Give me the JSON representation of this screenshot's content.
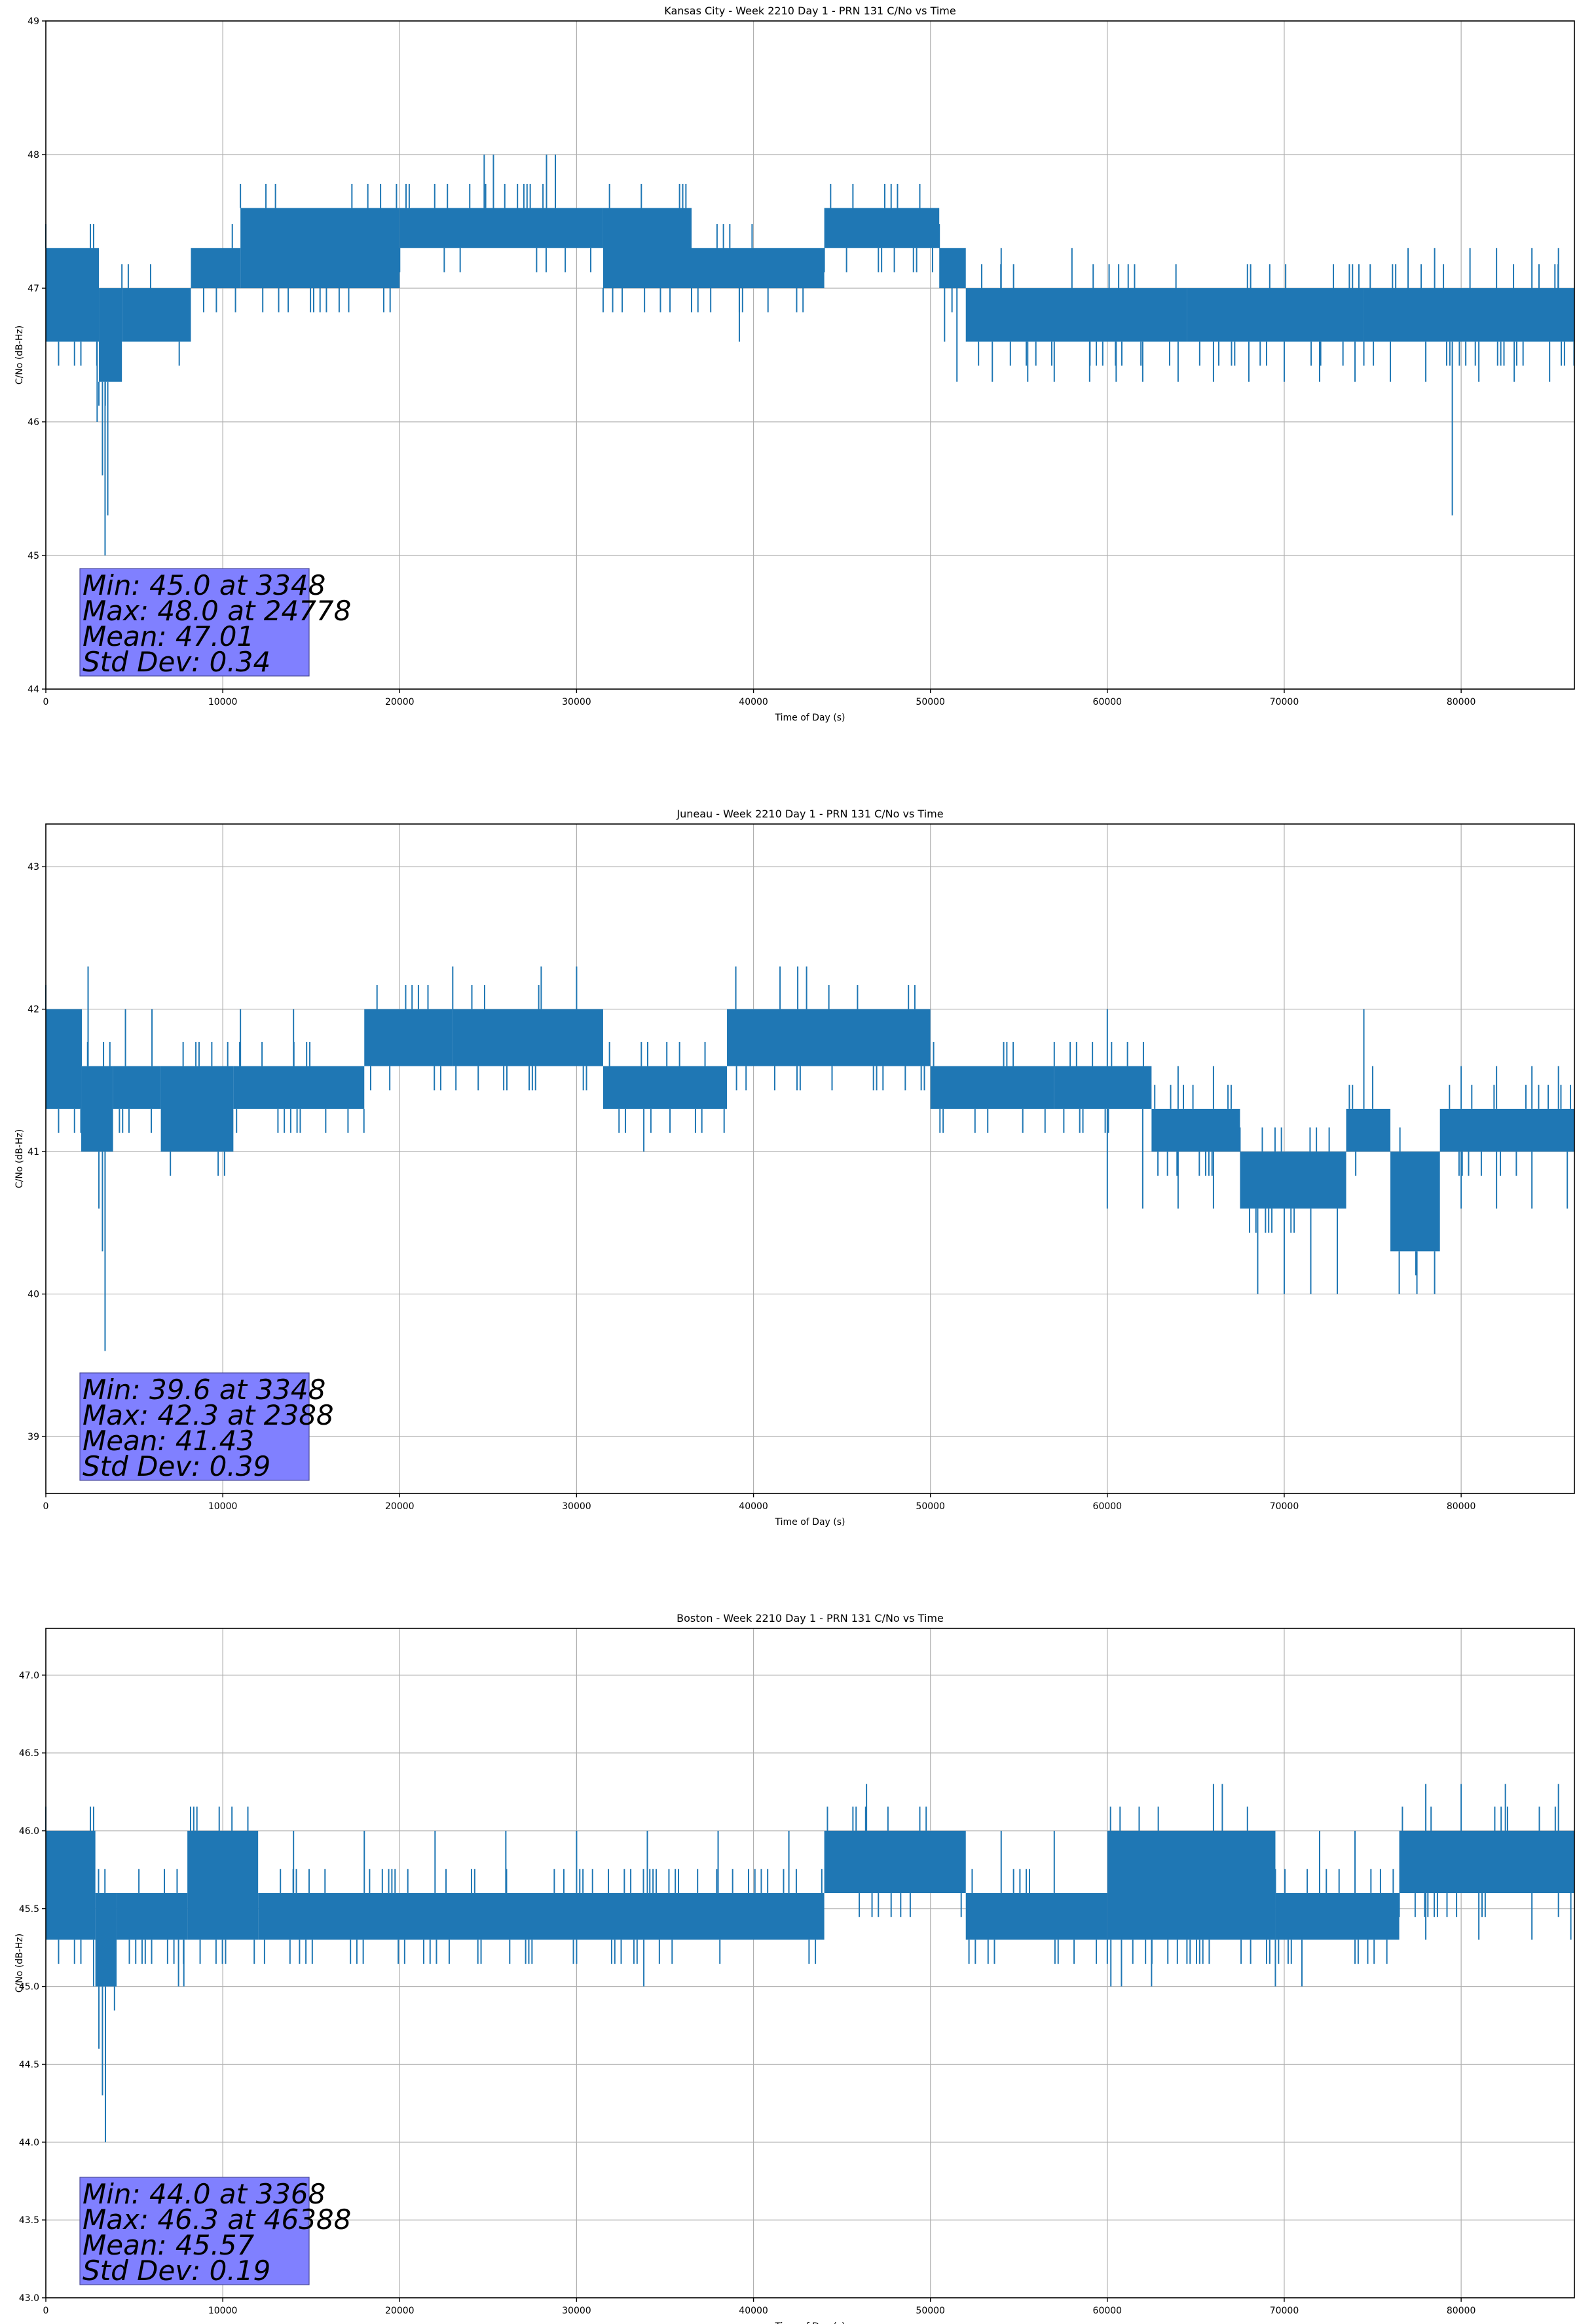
{
  "chart_data": [
    {
      "type": "line",
      "title": "Kansas City - Week 2210 Day 1 - PRN 131 C/No vs Time",
      "xlabel": "Time of Day (s)",
      "ylabel": "C/No (dB-Hz)",
      "xlim": [
        0,
        86400
      ],
      "ylim": [
        44,
        49
      ],
      "x_ticks": [
        0,
        10000,
        20000,
        30000,
        40000,
        50000,
        60000,
        70000,
        80000
      ],
      "x_tick_labels": [
        "0",
        "10000",
        "20000",
        "30000",
        "40000",
        "50000",
        "60000",
        "70000",
        "80000"
      ],
      "y_ticks": [
        44,
        45,
        46,
        47,
        48,
        49
      ],
      "y_tick_labels": [
        "44",
        "45",
        "46",
        "47",
        "48",
        "49"
      ],
      "grid": true,
      "color": "#1f77b4",
      "stats_box_color": "#8080ff",
      "stats": [
        "Min: 45.0 at 3348",
        "Max: 48.0 at 24778",
        "Mean: 47.01",
        "Std Dev: 0.34"
      ],
      "series": [
        {
          "segments": [
            {
              "x0": 0,
              "x1": 3000,
              "lo": 46.6,
              "hi": 47.3
            },
            {
              "x0": 3000,
              "x1": 4300,
              "lo": 46.3,
              "hi": 47.0
            },
            {
              "x0": 4300,
              "x1": 8200,
              "lo": 46.6,
              "hi": 47.0
            },
            {
              "x0": 8200,
              "x1": 11000,
              "lo": 47.0,
              "hi": 47.3
            },
            {
              "x0": 11000,
              "x1": 20000,
              "lo": 47.0,
              "hi": 47.6
            },
            {
              "x0": 20000,
              "x1": 31500,
              "lo": 47.3,
              "hi": 47.6
            },
            {
              "x0": 31500,
              "x1": 36500,
              "lo": 47.0,
              "hi": 47.6
            },
            {
              "x0": 36500,
              "x1": 44000,
              "lo": 47.0,
              "hi": 47.3
            },
            {
              "x0": 44000,
              "x1": 50500,
              "lo": 47.3,
              "hi": 47.6
            },
            {
              "x0": 50500,
              "x1": 52000,
              "lo": 47.0,
              "hi": 47.3
            },
            {
              "x0": 52000,
              "x1": 64500,
              "lo": 46.6,
              "hi": 47.0
            },
            {
              "x0": 64500,
              "x1": 74500,
              "lo": 46.6,
              "hi": 47.0
            },
            {
              "x0": 74500,
              "x1": 86400,
              "lo": 46.6,
              "hi": 47.0
            }
          ],
          "spikes_up": [
            {
              "x": 400,
              "y": 47.3
            },
            {
              "x": 1000,
              "y": 47.3
            },
            {
              "x": 1500,
              "y": 47.3
            },
            {
              "x": 1900,
              "y": 47.3
            },
            {
              "x": 24778,
              "y": 48.0
            },
            {
              "x": 25300,
              "y": 48.0
            },
            {
              "x": 28300,
              "y": 48.0
            },
            {
              "x": 28800,
              "y": 48.0
            },
            {
              "x": 12000,
              "y": 47.6
            },
            {
              "x": 13000,
              "y": 47.6
            },
            {
              "x": 14500,
              "y": 47.6
            },
            {
              "x": 16000,
              "y": 47.6
            },
            {
              "x": 18000,
              "y": 47.6
            },
            {
              "x": 77000,
              "y": 47.3
            },
            {
              "x": 78500,
              "y": 47.3
            },
            {
              "x": 80500,
              "y": 47.3
            },
            {
              "x": 82000,
              "y": 47.3
            },
            {
              "x": 84000,
              "y": 47.3
            },
            {
              "x": 85500,
              "y": 47.3
            },
            {
              "x": 54000,
              "y": 47.3
            },
            {
              "x": 58000,
              "y": 47.3
            }
          ],
          "spikes_down": [
            {
              "x": 3348,
              "y": 45.0
            },
            {
              "x": 3200,
              "y": 45.6
            },
            {
              "x": 3500,
              "y": 45.3
            },
            {
              "x": 2900,
              "y": 46.0
            },
            {
              "x": 39200,
              "y": 46.6
            },
            {
              "x": 79500,
              "y": 45.3
            },
            {
              "x": 50800,
              "y": 46.6
            },
            {
              "x": 51500,
              "y": 46.3
            },
            {
              "x": 53500,
              "y": 46.3
            },
            {
              "x": 55500,
              "y": 46.3
            },
            {
              "x": 57000,
              "y": 46.3
            },
            {
              "x": 59000,
              "y": 46.3
            },
            {
              "x": 60500,
              "y": 46.3
            },
            {
              "x": 62000,
              "y": 46.3
            },
            {
              "x": 64000,
              "y": 46.3
            },
            {
              "x": 66000,
              "y": 46.3
            },
            {
              "x": 68000,
              "y": 46.3
            },
            {
              "x": 70000,
              "y": 46.3
            },
            {
              "x": 72000,
              "y": 46.3
            },
            {
              "x": 74000,
              "y": 46.3
            },
            {
              "x": 76000,
              "y": 46.3
            },
            {
              "x": 78000,
              "y": 46.3
            },
            {
              "x": 81000,
              "y": 46.3
            },
            {
              "x": 83000,
              "y": 46.3
            },
            {
              "x": 85000,
              "y": 46.3
            }
          ]
        }
      ]
    },
    {
      "type": "line",
      "title": "Juneau - Week 2210 Day 1 - PRN 131 C/No vs Time",
      "xlabel": "Time of Day (s)",
      "ylabel": "C/No (dB-Hz)",
      "xlim": [
        0,
        86400
      ],
      "ylim": [
        38.6,
        43.3
      ],
      "x_ticks": [
        0,
        10000,
        20000,
        30000,
        40000,
        50000,
        60000,
        70000,
        80000
      ],
      "x_tick_labels": [
        "0",
        "10000",
        "20000",
        "30000",
        "40000",
        "50000",
        "60000",
        "70000",
        "80000"
      ],
      "y_ticks": [
        39,
        40,
        41,
        42,
        43
      ],
      "y_tick_labels": [
        "39",
        "40",
        "41",
        "42",
        "43"
      ],
      "grid": true,
      "color": "#1f77b4",
      "stats_box_color": "#8080ff",
      "stats": [
        "Min: 39.6 at 3348",
        "Max: 42.3 at 2388",
        "Mean: 41.43",
        "Std Dev: 0.39"
      ],
      "series": [
        {
          "segments": [
            {
              "x0": 0,
              "x1": 2000,
              "lo": 41.3,
              "hi": 42.0
            },
            {
              "x0": 2000,
              "x1": 3800,
              "lo": 41.0,
              "hi": 41.6
            },
            {
              "x0": 3800,
              "x1": 6500,
              "lo": 41.3,
              "hi": 41.6
            },
            {
              "x0": 6500,
              "x1": 10600,
              "lo": 41.0,
              "hi": 41.6
            },
            {
              "x0": 10600,
              "x1": 18000,
              "lo": 41.3,
              "hi": 41.6
            },
            {
              "x0": 18000,
              "x1": 23000,
              "lo": 41.6,
              "hi": 42.0
            },
            {
              "x0": 23000,
              "x1": 31500,
              "lo": 41.6,
              "hi": 42.0
            },
            {
              "x0": 31500,
              "x1": 38500,
              "lo": 41.3,
              "hi": 41.6
            },
            {
              "x0": 38500,
              "x1": 50000,
              "lo": 41.6,
              "hi": 42.0
            },
            {
              "x0": 50000,
              "x1": 57000,
              "lo": 41.3,
              "hi": 41.6
            },
            {
              "x0": 57000,
              "x1": 62500,
              "lo": 41.3,
              "hi": 41.6
            },
            {
              "x0": 62500,
              "x1": 67500,
              "lo": 41.0,
              "hi": 41.3
            },
            {
              "x0": 67500,
              "x1": 73500,
              "lo": 40.6,
              "hi": 41.0
            },
            {
              "x0": 73500,
              "x1": 76000,
              "lo": 41.0,
              "hi": 41.3
            },
            {
              "x0": 76000,
              "x1": 78800,
              "lo": 40.3,
              "hi": 41.0
            },
            {
              "x0": 78800,
              "x1": 86400,
              "lo": 41.0,
              "hi": 41.3
            }
          ],
          "spikes_up": [
            {
              "x": 2388,
              "y": 42.3
            },
            {
              "x": 23000,
              "y": 42.3
            },
            {
              "x": 28000,
              "y": 42.3
            },
            {
              "x": 30000,
              "y": 42.3
            },
            {
              "x": 39000,
              "y": 42.3
            },
            {
              "x": 41500,
              "y": 42.3
            },
            {
              "x": 42500,
              "y": 42.3
            },
            {
              "x": 43000,
              "y": 42.3
            },
            {
              "x": 2000,
              "y": 42.0
            },
            {
              "x": 4500,
              "y": 42.0
            },
            {
              "x": 6000,
              "y": 42.0
            },
            {
              "x": 11000,
              "y": 42.0
            },
            {
              "x": 14000,
              "y": 42.0
            },
            {
              "x": 60000,
              "y": 42.0
            },
            {
              "x": 74500,
              "y": 42.0
            },
            {
              "x": 64000,
              "y": 41.6
            },
            {
              "x": 66000,
              "y": 41.6
            },
            {
              "x": 75000,
              "y": 41.6
            },
            {
              "x": 80000,
              "y": 41.6
            },
            {
              "x": 82000,
              "y": 41.6
            },
            {
              "x": 84000,
              "y": 41.6
            },
            {
              "x": 85500,
              "y": 41.6
            }
          ],
          "spikes_down": [
            {
              "x": 3348,
              "y": 39.6
            },
            {
              "x": 3200,
              "y": 40.3
            },
            {
              "x": 3000,
              "y": 40.6
            },
            {
              "x": 33800,
              "y": 41.0
            },
            {
              "x": 68500,
              "y": 40.0
            },
            {
              "x": 70000,
              "y": 40.0
            },
            {
              "x": 71500,
              "y": 40.0
            },
            {
              "x": 73000,
              "y": 40.0
            },
            {
              "x": 76500,
              "y": 40.0
            },
            {
              "x": 77500,
              "y": 40.0
            },
            {
              "x": 78500,
              "y": 40.0
            },
            {
              "x": 60000,
              "y": 40.6
            },
            {
              "x": 62000,
              "y": 40.6
            },
            {
              "x": 64000,
              "y": 40.6
            },
            {
              "x": 66000,
              "y": 40.6
            },
            {
              "x": 80000,
              "y": 40.6
            },
            {
              "x": 82000,
              "y": 40.6
            },
            {
              "x": 84000,
              "y": 40.6
            },
            {
              "x": 86000,
              "y": 40.6
            }
          ]
        }
      ]
    },
    {
      "type": "line",
      "title": "Boston - Week 2210 Day 1 - PRN 131 C/No vs Time",
      "xlabel": "Time of Day (s)",
      "ylabel": "C/No (dB-Hz)",
      "xlim": [
        0,
        86400
      ],
      "ylim": [
        43.0,
        47.3
      ],
      "x_ticks": [
        0,
        10000,
        20000,
        30000,
        40000,
        50000,
        60000,
        70000,
        80000
      ],
      "x_tick_labels": [
        "0",
        "10000",
        "20000",
        "30000",
        "40000",
        "50000",
        "60000",
        "70000",
        "80000"
      ],
      "y_ticks": [
        43.0,
        43.5,
        44.0,
        44.5,
        45.0,
        45.5,
        46.0,
        46.5,
        47.0
      ],
      "y_tick_labels": [
        "43.0",
        "43.5",
        "44.0",
        "44.5",
        "45.0",
        "45.5",
        "46.0",
        "46.5",
        "47.0"
      ],
      "grid": true,
      "color": "#1f77b4",
      "stats_box_color": "#8080ff",
      "stats": [
        "Min: 44.0 at 3368",
        "Max: 46.3 at 46388",
        "Mean: 45.57",
        "Std Dev: 0.19"
      ],
      "series": [
        {
          "segments": [
            {
              "x0": 0,
              "x1": 2800,
              "lo": 45.3,
              "hi": 46.0
            },
            {
              "x0": 2800,
              "x1": 4000,
              "lo": 45.0,
              "hi": 45.6
            },
            {
              "x0": 4000,
              "x1": 8000,
              "lo": 45.3,
              "hi": 45.6
            },
            {
              "x0": 8000,
              "x1": 12000,
              "lo": 45.3,
              "hi": 46.0
            },
            {
              "x0": 12000,
              "x1": 44000,
              "lo": 45.3,
              "hi": 45.6
            },
            {
              "x0": 44000,
              "x1": 52000,
              "lo": 45.6,
              "hi": 46.0
            },
            {
              "x0": 52000,
              "x1": 60000,
              "lo": 45.3,
              "hi": 45.6
            },
            {
              "x0": 60000,
              "x1": 69500,
              "lo": 45.3,
              "hi": 46.0
            },
            {
              "x0": 69500,
              "x1": 76500,
              "lo": 45.3,
              "hi": 45.6
            },
            {
              "x0": 76500,
              "x1": 86400,
              "lo": 45.6,
              "hi": 46.0
            }
          ],
          "spikes_up": [
            {
              "x": 46388,
              "y": 46.3
            },
            {
              "x": 66000,
              "y": 46.3
            },
            {
              "x": 66500,
              "y": 46.3
            },
            {
              "x": 78000,
              "y": 46.3
            },
            {
              "x": 80000,
              "y": 46.3
            },
            {
              "x": 82500,
              "y": 46.3
            },
            {
              "x": 85500,
              "y": 46.3
            },
            {
              "x": 14000,
              "y": 46.0
            },
            {
              "x": 18000,
              "y": 46.0
            },
            {
              "x": 22000,
              "y": 46.0
            },
            {
              "x": 26000,
              "y": 46.0
            },
            {
              "x": 30000,
              "y": 46.0
            },
            {
              "x": 34000,
              "y": 46.0
            },
            {
              "x": 38000,
              "y": 46.0
            },
            {
              "x": 42000,
              "y": 46.0
            },
            {
              "x": 54000,
              "y": 46.0
            },
            {
              "x": 57000,
              "y": 46.0
            },
            {
              "x": 72000,
              "y": 46.0
            },
            {
              "x": 74000,
              "y": 46.0
            }
          ],
          "spikes_down": [
            {
              "x": 3368,
              "y": 44.0
            },
            {
              "x": 3200,
              "y": 44.3
            },
            {
              "x": 3000,
              "y": 44.6
            },
            {
              "x": 2700,
              "y": 45.0
            },
            {
              "x": 7500,
              "y": 45.0
            },
            {
              "x": 7800,
              "y": 45.0
            },
            {
              "x": 33800,
              "y": 45.0
            },
            {
              "x": 60200,
              "y": 45.0
            },
            {
              "x": 60800,
              "y": 45.0
            },
            {
              "x": 62500,
              "y": 45.0
            },
            {
              "x": 69500,
              "y": 45.0
            },
            {
              "x": 71000,
              "y": 45.0
            },
            {
              "x": 78000,
              "y": 45.3
            },
            {
              "x": 81000,
              "y": 45.3
            },
            {
              "x": 84000,
              "y": 45.3
            },
            {
              "x": 86200,
              "y": 45.3
            }
          ]
        }
      ]
    }
  ]
}
